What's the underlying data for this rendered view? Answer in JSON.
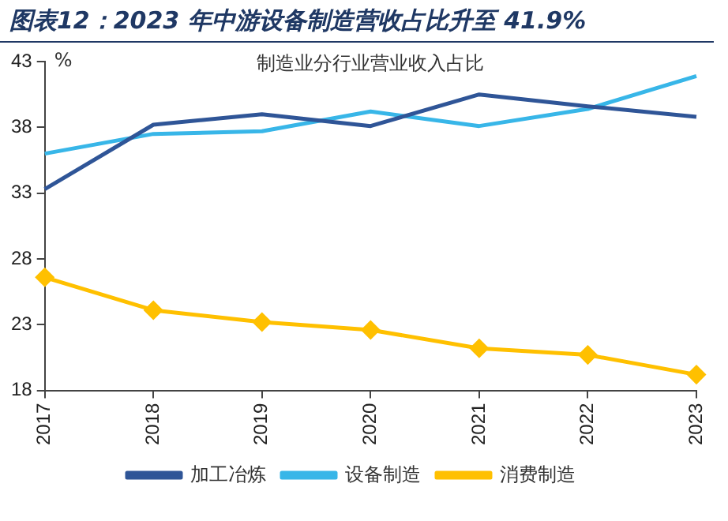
{
  "chart_data": {
    "type": "line",
    "title": "图表12：2023 年中游设备制造营收占比升至 41.9%",
    "subtitle": "制造业分行业营业收入占比",
    "ylabel": "%",
    "categories": [
      "2017",
      "2018",
      "2019",
      "2020",
      "2021",
      "2022",
      "2023"
    ],
    "series": [
      {
        "name": "加工冶炼",
        "color": "#2f5597",
        "marker": "none",
        "values": [
          33.3,
          38.2,
          39.0,
          38.1,
          40.5,
          39.6,
          38.8
        ]
      },
      {
        "name": "设备制造",
        "color": "#38b6e8",
        "marker": "none",
        "values": [
          36.0,
          37.5,
          37.7,
          39.2,
          38.1,
          39.4,
          41.9
        ]
      },
      {
        "name": "消费制造",
        "color": "#ffc000",
        "marker": "diamond",
        "values": [
          26.6,
          24.1,
          23.2,
          22.6,
          21.2,
          20.7,
          19.2
        ]
      }
    ],
    "ylim": [
      18,
      43
    ],
    "yticks": [
      18,
      23,
      28,
      33,
      38,
      43
    ],
    "grid": false,
    "legend": "bottom"
  }
}
